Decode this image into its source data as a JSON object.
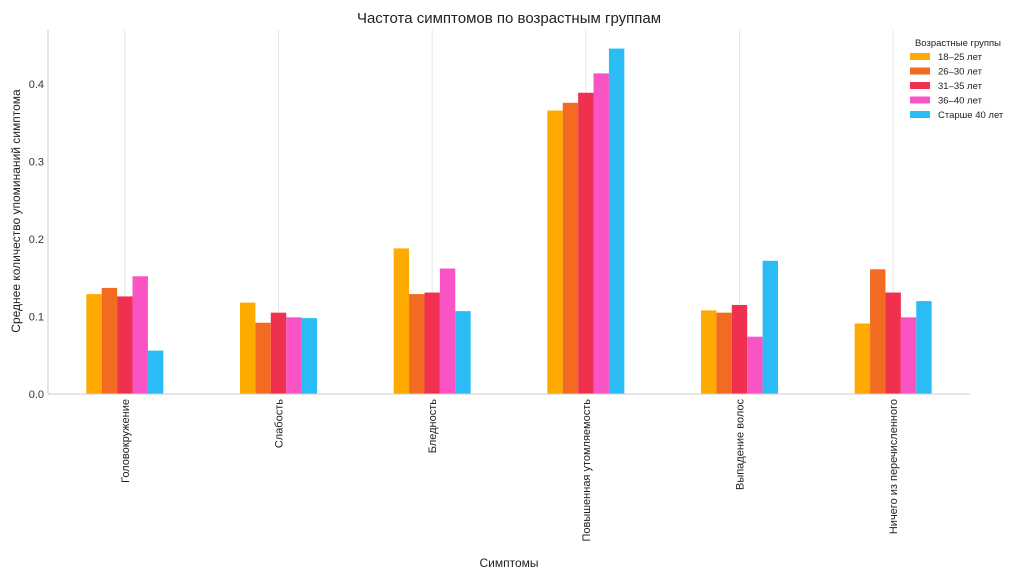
{
  "chart_data": {
    "type": "bar",
    "title": "Частота симптомов по возрастным группам",
    "xlabel": "Симптомы",
    "ylabel": "Среднее количество упоминаний симптома",
    "ylim": [
      0,
      0.47
    ],
    "yticks": [
      "0.0",
      "0.1",
      "0.2",
      "0.3",
      "0.4"
    ],
    "grid": "vertical",
    "legend_placement": "top-right",
    "legend_title": "Возрастные группы",
    "categories": [
      "Головокружение",
      "Слабость",
      "Бледность",
      "Повышенная утомляемость",
      "Выпадение волос",
      "Ничего из перечисленного"
    ],
    "series": [
      {
        "name": "18–25 лет",
        "color": "#FFAA00",
        "values": [
          0.129,
          0.118,
          0.188,
          0.366,
          0.108,
          0.091
        ]
      },
      {
        "name": "26–30 лет",
        "color": "#F26B21",
        "values": [
          0.137,
          0.092,
          0.129,
          0.376,
          0.105,
          0.161
        ]
      },
      {
        "name": "31–35 лет",
        "color": "#F0304F",
        "values": [
          0.126,
          0.105,
          0.131,
          0.389,
          0.115,
          0.131
        ]
      },
      {
        "name": "36–40 лет",
        "color": "#FA54C4",
        "values": [
          0.152,
          0.099,
          0.162,
          0.414,
          0.074,
          0.099
        ]
      },
      {
        "name": "Старше 40 лет",
        "color": "#2BBCF6",
        "values": [
          0.056,
          0.098,
          0.107,
          0.446,
          0.172,
          0.12
        ]
      }
    ]
  }
}
